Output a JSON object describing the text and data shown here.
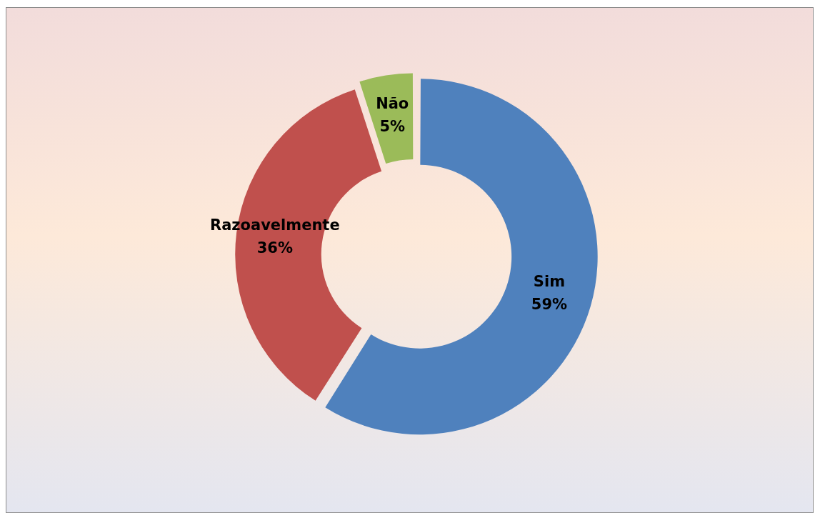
{
  "chart_data": {
    "type": "donut",
    "categories": [
      "Sim",
      "Razoavelmente",
      "Não"
    ],
    "values": [
      59,
      36,
      5
    ],
    "colors": [
      "#4f81bd",
      "#c0504d",
      "#9bbb59"
    ],
    "value_labels": [
      "59%",
      "36%",
      "5%"
    ],
    "legend": false
  }
}
